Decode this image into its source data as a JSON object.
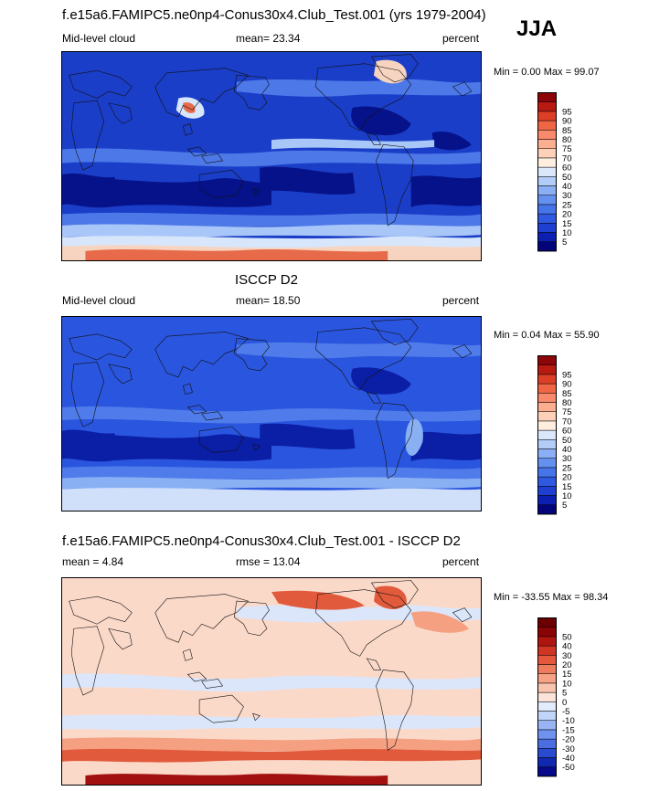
{
  "season": "JJA",
  "panels": [
    {
      "id": "model",
      "title": "f.e15a6.FAMIPC5.ne0np4-Conus30x4.Club_Test.001 (yrs 1979-2004)",
      "left_label": "Mid-level cloud",
      "center_label": "mean=  23.34",
      "right_label": "percent",
      "minmax": "Min =   0.00 Max =  99.07",
      "colorbar": {
        "labels": [
          "5",
          "10",
          "15",
          "20",
          "25",
          "30",
          "40",
          "50",
          "60",
          "70",
          "75",
          "80",
          "85",
          "90",
          "95"
        ],
        "colors": [
          "#03037a",
          "#0c1fb0",
          "#1e3fcf",
          "#2f59e0",
          "#4675ea",
          "#6490f0",
          "#8aaff5",
          "#b3cdf9",
          "#dbe8fc",
          "#fdeee0",
          "#fdd0b8",
          "#fcae90",
          "#f98a6b",
          "#f06645",
          "#dc3f26",
          "#b81a12",
          "#8c0508"
        ]
      },
      "fields": {
        "background": "#1a3ec8",
        "contours": [
          {
            "color": "#06128a",
            "regions": [
              "south-pacific-band",
              "south-atlantic-band",
              "indian-ocean-band",
              "north-pacific-east",
              "atlantic-subtropics"
            ]
          },
          {
            "color": "#4d78e8",
            "regions": [
              "tropics",
              "north-pacific-storm-track",
              "south-ocean"
            ]
          },
          {
            "color": "#a9c6f8",
            "regions": [
              "itcz-pacific",
              "southern-band-upper"
            ]
          },
          {
            "color": "#d8e6fc",
            "regions": [
              "antarctic-margin",
              "tibet"
            ]
          },
          {
            "color": "#f7d4c0",
            "regions": [
              "antarctic-ice",
              "greenland"
            ]
          },
          {
            "color": "#e76b4a",
            "regions": [
              "antarctic-core",
              "tibet-core"
            ]
          }
        ]
      }
    },
    {
      "id": "obs",
      "title": "ISCCP D2",
      "left_label": "Mid-level cloud",
      "center_label": "mean=  18.50",
      "right_label": "percent",
      "minmax": "Min =   0.04 Max =  55.90",
      "colorbar": {
        "labels": [
          "5",
          "10",
          "15",
          "20",
          "25",
          "30",
          "40",
          "50",
          "60",
          "70",
          "75",
          "80",
          "85",
          "90",
          "95"
        ],
        "colors": [
          "#03037a",
          "#0c1fb0",
          "#1e3fcf",
          "#2f59e0",
          "#4675ea",
          "#6490f0",
          "#8aaff5",
          "#b3cdf9",
          "#dbe8fc",
          "#fdeee0",
          "#fdd0b8",
          "#fcae90",
          "#f98a6b",
          "#f06645",
          "#dc3f26",
          "#b81a12",
          "#8c0508"
        ]
      },
      "fields": {
        "background": "#2a55de",
        "contours": [
          {
            "color": "#0b1ea6",
            "regions": [
              "south-pacific-band",
              "south-atlantic-band",
              "indian-ocean-band",
              "north-pacific-east"
            ]
          },
          {
            "color": "#4f7cea",
            "regions": [
              "tropics",
              "north-pacific-storm-track",
              "south-ocean"
            ]
          },
          {
            "color": "#8ab0f4",
            "regions": [
              "southern-band-upper",
              "south-america"
            ]
          },
          {
            "color": "#d0e0fb",
            "regions": [
              "antarctic-margin"
            ]
          }
        ]
      }
    },
    {
      "id": "diff",
      "title": "f.e15a6.FAMIPC5.ne0np4-Conus30x4.Club_Test.001 - ISCCP D2",
      "left_label": "mean =   4.84",
      "center_label": "rmse =  13.04",
      "right_label": "percent",
      "minmax": "Min = -33.55 Max =  98.34",
      "colorbar": {
        "labels": [
          "-50",
          "-40",
          "-30",
          "-20",
          "-15",
          "-10",
          "-5",
          "0",
          "5",
          "10",
          "15",
          "20",
          "30",
          "40",
          "50"
        ],
        "colors": [
          "#060a8a",
          "#1128b0",
          "#2a4ad0",
          "#4a6ee2",
          "#6f92ee",
          "#98b4f4",
          "#c1d4fa",
          "#e3ecfd",
          "#fbe3da",
          "#f9c4ae",
          "#f5a285",
          "#ee7d5f",
          "#e4583e",
          "#d03422",
          "#b01610",
          "#8a0305",
          "#6a0000"
        ]
      },
      "fields": {
        "background": "#fbd9c9",
        "contours": [
          {
            "color": "#dbe6fb",
            "regions": [
              "tropics",
              "north-pacific-storm-track",
              "south-ocean-mid"
            ]
          },
          {
            "color": "#f4a081",
            "regions": [
              "south-ocean",
              "north-atlantic"
            ]
          },
          {
            "color": "#e25a3c",
            "regions": [
              "southern-band-upper",
              "greenland",
              "siberia"
            ]
          },
          {
            "color": "#a21010",
            "regions": [
              "antarctic-core"
            ]
          }
        ]
      }
    }
  ]
}
